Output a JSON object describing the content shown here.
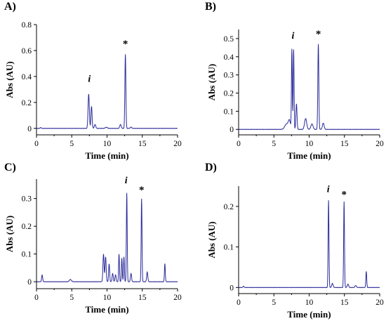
{
  "chart_data": [
    {
      "type": "line",
      "panel": "A)",
      "xlabel": "Time (min)",
      "ylabel": "Abs (AU)",
      "xlim": [
        0,
        20
      ],
      "ylim": [
        -0.05,
        0.8
      ],
      "xticks": [
        "0",
        "5",
        "10",
        "15",
        "20"
      ],
      "yticks": [
        "0",
        "0.2",
        "0.4",
        "0.6",
        "0.8"
      ],
      "baseline": 0.0,
      "color": "#2b2b9a",
      "peaks": [
        {
          "t": 0.6,
          "h": 0.006,
          "w": 0.08
        },
        {
          "t": 7.4,
          "h": 0.265,
          "w": 0.09
        },
        {
          "t": 7.8,
          "h": 0.17,
          "w": 0.08
        },
        {
          "t": 8.3,
          "h": 0.03,
          "w": 0.1
        },
        {
          "t": 9.9,
          "h": 0.008,
          "w": 0.15
        },
        {
          "t": 11.9,
          "h": 0.03,
          "w": 0.1
        },
        {
          "t": 12.6,
          "h": 0.57,
          "w": 0.07
        },
        {
          "t": 13.4,
          "h": 0.01,
          "w": 0.1
        }
      ],
      "annotations": [
        {
          "text": "i",
          "x": 7.5,
          "y": 0.36,
          "kind": "peak"
        },
        {
          "text": "*",
          "x": 12.6,
          "y": 0.66,
          "kind": "star"
        }
      ]
    },
    {
      "type": "line",
      "panel": "B)",
      "xlabel": "Time (min)",
      "ylabel": "Abs (AU)",
      "xlim": [
        0,
        20
      ],
      "ylim": [
        -0.03,
        0.55
      ],
      "xticks": [
        "0",
        "5",
        "10",
        "15",
        "20"
      ],
      "yticks": [
        "0",
        "0.1",
        "0.2",
        "0.3",
        "0.4",
        "0.5"
      ],
      "baseline": 0.0,
      "color": "#2b2b9a",
      "peaks": [
        {
          "t": 6.8,
          "h": 0.03,
          "w": 0.25
        },
        {
          "t": 7.2,
          "h": 0.045,
          "w": 0.15
        },
        {
          "t": 7.55,
          "h": 0.44,
          "w": 0.06
        },
        {
          "t": 7.8,
          "h": 0.44,
          "w": 0.06
        },
        {
          "t": 8.2,
          "h": 0.14,
          "w": 0.08
        },
        {
          "t": 9.5,
          "h": 0.06,
          "w": 0.15
        },
        {
          "t": 10.4,
          "h": 0.03,
          "w": 0.15
        },
        {
          "t": 11.3,
          "h": 0.47,
          "w": 0.07
        },
        {
          "t": 12.0,
          "h": 0.035,
          "w": 0.12
        }
      ],
      "annotations": [
        {
          "text": "i",
          "x": 7.7,
          "y": 0.5,
          "kind": "peak"
        },
        {
          "text": "*",
          "x": 11.3,
          "y": 0.53,
          "kind": "star"
        }
      ]
    },
    {
      "type": "line",
      "panel": "C)",
      "xlabel": "Time (min)",
      "ylabel": "Abs (AU)",
      "xlim": [
        0,
        20
      ],
      "ylim": [
        -0.025,
        0.37
      ],
      "xticks": [
        "0",
        "5",
        "10",
        "15",
        "20"
      ],
      "yticks": [
        "0",
        "0.1",
        "0.2",
        "0.3"
      ],
      "baseline": 0.0,
      "color": "#2b2b9a",
      "peaks": [
        {
          "t": 0.8,
          "h": 0.025,
          "w": 0.07
        },
        {
          "t": 4.8,
          "h": 0.008,
          "w": 0.15
        },
        {
          "t": 9.5,
          "h": 0.1,
          "w": 0.08
        },
        {
          "t": 9.8,
          "h": 0.09,
          "w": 0.08
        },
        {
          "t": 10.3,
          "h": 0.065,
          "w": 0.07
        },
        {
          "t": 10.8,
          "h": 0.03,
          "w": 0.08
        },
        {
          "t": 11.2,
          "h": 0.025,
          "w": 0.08
        },
        {
          "t": 11.7,
          "h": 0.1,
          "w": 0.06
        },
        {
          "t": 12.1,
          "h": 0.085,
          "w": 0.06
        },
        {
          "t": 12.4,
          "h": 0.09,
          "w": 0.06
        },
        {
          "t": 12.8,
          "h": 0.32,
          "w": 0.06
        },
        {
          "t": 13.4,
          "h": 0.03,
          "w": 0.08
        },
        {
          "t": 14.9,
          "h": 0.3,
          "w": 0.06
        },
        {
          "t": 15.7,
          "h": 0.035,
          "w": 0.08
        },
        {
          "t": 18.2,
          "h": 0.065,
          "w": 0.06
        }
      ],
      "annotations": [
        {
          "text": "i",
          "x": 12.7,
          "y": 0.355,
          "kind": "peak"
        },
        {
          "text": "*",
          "x": 14.9,
          "y": 0.335,
          "kind": "star"
        }
      ]
    },
    {
      "type": "line",
      "panel": "D)",
      "xlabel": "Time (min)",
      "ylabel": "Abs (AU)",
      "xlim": [
        0,
        20
      ],
      "ylim": [
        -0.015,
        0.25
      ],
      "xticks": [
        "0",
        "5",
        "10",
        "15",
        "20"
      ],
      "yticks": [
        "0",
        "0.1",
        "0.2"
      ],
      "baseline": 0.0,
      "color": "#2b2b9a",
      "peaks": [
        {
          "t": 0.7,
          "h": 0.003,
          "w": 0.08
        },
        {
          "t": 12.75,
          "h": 0.215,
          "w": 0.06
        },
        {
          "t": 13.3,
          "h": 0.01,
          "w": 0.1
        },
        {
          "t": 14.95,
          "h": 0.212,
          "w": 0.06
        },
        {
          "t": 15.5,
          "h": 0.008,
          "w": 0.1
        },
        {
          "t": 16.6,
          "h": 0.005,
          "w": 0.1
        },
        {
          "t": 18.1,
          "h": 0.04,
          "w": 0.06
        }
      ],
      "annotations": [
        {
          "text": "i",
          "x": 12.7,
          "y": 0.235,
          "kind": "peak"
        },
        {
          "text": "*",
          "x": 14.95,
          "y": 0.232,
          "kind": "star"
        }
      ]
    }
  ]
}
